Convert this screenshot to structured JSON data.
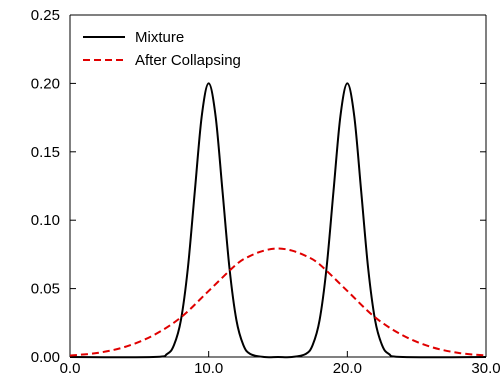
{
  "chart_data": {
    "type": "line",
    "title": "",
    "xlabel": "",
    "ylabel": "",
    "xlim": [
      0,
      30
    ],
    "ylim": [
      0,
      0.25
    ],
    "x_ticks": [
      "0.0",
      "10.0",
      "20.0",
      "30.0"
    ],
    "x_tick_values": [
      0,
      10,
      20,
      30
    ],
    "y_ticks": [
      "0.00",
      "0.05",
      "0.10",
      "0.15",
      "0.20",
      "0.25"
    ],
    "y_tick_values": [
      0,
      0.05,
      0.1,
      0.15,
      0.2,
      0.25
    ],
    "grid": false,
    "legend": "top-left",
    "series": [
      {
        "name": "Mixture",
        "color": "#000000",
        "style": "solid",
        "x": [
          0,
          6,
          7,
          7.5,
          8,
          8.5,
          9,
          9.5,
          10,
          10.5,
          11,
          11.5,
          12,
          12.5,
          13,
          14,
          15,
          16,
          17,
          17.5,
          18,
          18.5,
          19,
          19.5,
          20,
          20.5,
          21,
          21.5,
          22,
          22.5,
          23,
          24,
          30
        ],
        "y": [
          0,
          0,
          0.0022,
          0.0088,
          0.027,
          0.065,
          0.121,
          0.176,
          0.2,
          0.176,
          0.121,
          0.065,
          0.027,
          0.0088,
          0.0022,
          0,
          0,
          0,
          0.0022,
          0.0088,
          0.027,
          0.065,
          0.121,
          0.176,
          0.2,
          0.176,
          0.121,
          0.065,
          0.027,
          0.0088,
          0.0022,
          0,
          0
        ]
      },
      {
        "name": "After Collapsing",
        "color": "#e00000",
        "style": "dashed",
        "x": [
          0,
          2,
          4,
          6,
          8,
          10,
          12,
          13,
          14,
          15,
          16,
          17,
          18,
          20,
          22,
          24,
          26,
          28,
          30
        ],
        "y": [
          0.0011,
          0.003,
          0.0075,
          0.0158,
          0.029,
          0.0483,
          0.0677,
          0.0739,
          0.0778,
          0.0793,
          0.0778,
          0.0739,
          0.0677,
          0.0483,
          0.029,
          0.0158,
          0.0075,
          0.003,
          0.0011
        ]
      }
    ]
  }
}
